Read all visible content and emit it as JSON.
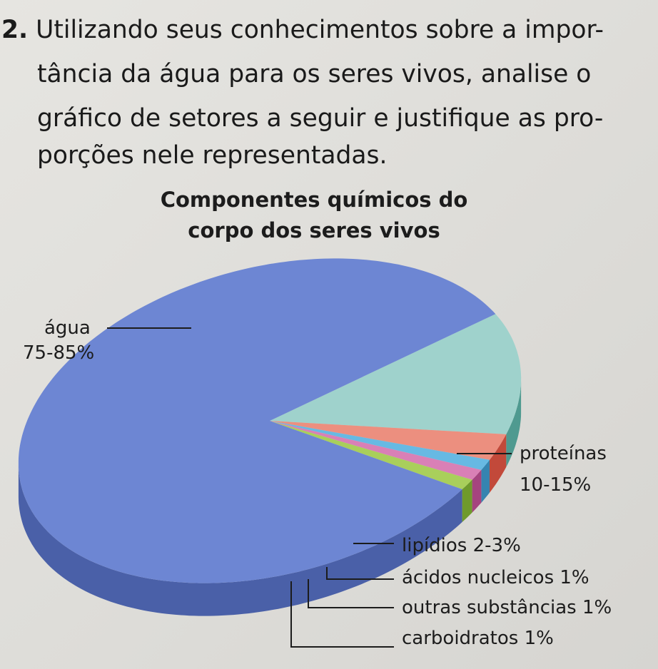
{
  "question": {
    "number": "2.",
    "lines": [
      "Utilizando seus conhecimentos sobre a impor-",
      "tância da água para os seres vivos, analise o",
      "gráfico de setores a seguir e justifique as pro-",
      "porções nele representadas."
    ]
  },
  "chart_data": {
    "type": "pie",
    "title_lines": [
      "Componentes químicos do",
      "corpo dos seres vivos"
    ],
    "unit": "%",
    "slices": [
      {
        "name": "água",
        "range": "75-85%",
        "value": 80,
        "color": "#6d86d3",
        "side": "#4a60a8"
      },
      {
        "name": "proteínas",
        "range": "10-15%",
        "value": 12.5,
        "color": "#9fd2cc",
        "side": "#4f9a90"
      },
      {
        "name": "lipídios",
        "range": "2-3%",
        "value": 2.5,
        "color": "#ec8f7f",
        "side": "#c2493a"
      },
      {
        "name": "ácidos nucleicos",
        "range": "1%",
        "value": 1,
        "color": "#67b9e3",
        "side": "#3584b0"
      },
      {
        "name": "outras substâncias",
        "range": "1%",
        "value": 1,
        "color": "#d980b6",
        "side": "#a5447f"
      },
      {
        "name": "carboidratos",
        "range": "1%",
        "value": 1,
        "color": "#a9cf5b",
        "side": "#6f9a2c"
      }
    ],
    "labels": {
      "agua": [
        "água",
        "75-85%"
      ],
      "proteinas": [
        "proteínas",
        "10-15%"
      ],
      "lipidios": "lipídios 2-3%",
      "acidos": "ácidos nucleicos 1%",
      "outras": "outras substâncias 1%",
      "carboidratos": "carboidratos 1%"
    }
  }
}
